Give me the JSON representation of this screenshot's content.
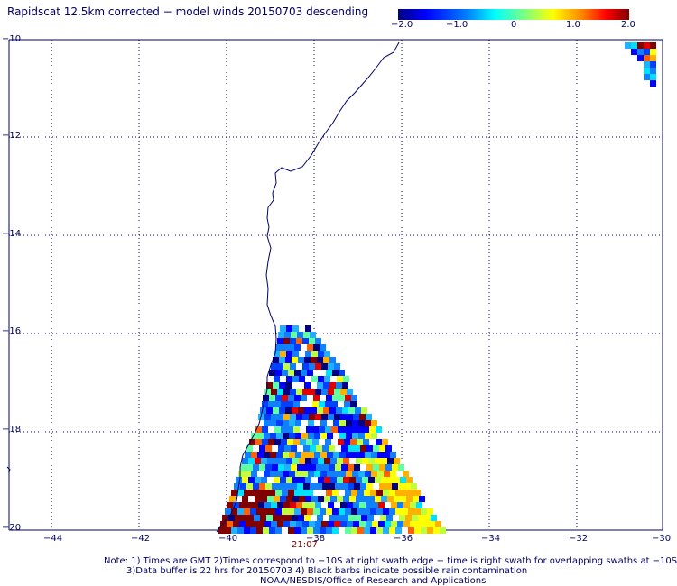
{
  "title": "Rapidscat 12.5km corrected − model winds 20150703 descending",
  "colorbar": {
    "labels": [
      "−2.0",
      "−1.0",
      "0",
      "1.0",
      "2.0"
    ],
    "range": [
      -2.0,
      2.0
    ]
  },
  "axes": {
    "x_ticks": [
      "−44",
      "−42",
      "−40",
      "−38",
      "−36",
      "−34",
      "−32",
      "−30"
    ],
    "y_ticks": [
      "−10",
      "−12",
      "−14",
      "−16",
      "−18",
      "−20"
    ],
    "lon_range": [
      -45,
      -30
    ],
    "lat_range": [
      -20,
      -10
    ],
    "grid": "dotted"
  },
  "timestamp": "21:07",
  "notes": {
    "line1": "Note: 1) Times are GMT 2)Times correspond to −10S at right swath edge − time is right swath for overlapping swaths at −10S",
    "line2": "3)Data buffer is 22 hrs for 20150703 4) Black barbs indicate possible rain contamination",
    "line3": "NOAA/NESDIS/Office of Research and Applications"
  },
  "colors": {
    "text": "#000066",
    "coastline": "#000066",
    "timestamp": "#800000"
  }
}
